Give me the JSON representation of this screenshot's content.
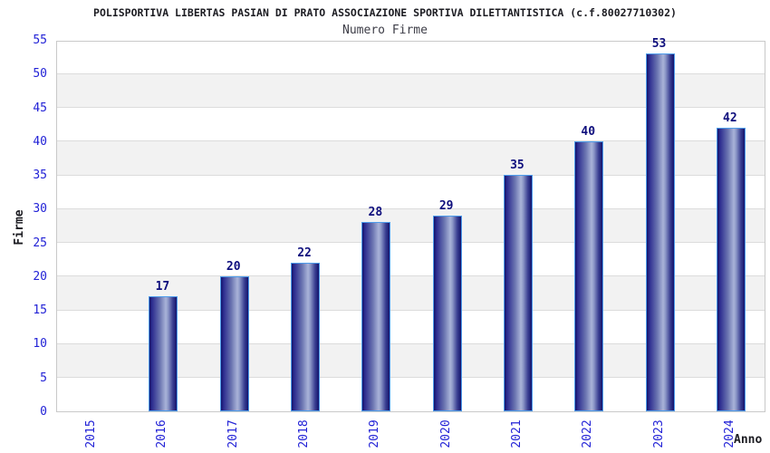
{
  "chart_data": {
    "type": "bar",
    "title": "POLISPORTIVA LIBERTAS PASIAN DI PRATO ASSOCIAZIONE SPORTIVA DILETTANTISTICA (c.f.80027710302)",
    "subtitle": "Numero Firme",
    "xlabel": "Anno",
    "ylabel": "Firme",
    "categories": [
      "2015",
      "2016",
      "2017",
      "2018",
      "2019",
      "2020",
      "2021",
      "2022",
      "2023",
      "2024"
    ],
    "values": [
      null,
      17,
      20,
      22,
      28,
      29,
      35,
      40,
      53,
      42
    ],
    "ylim": [
      0,
      55
    ],
    "ytick_step": 5,
    "yticks": [
      0,
      5,
      10,
      15,
      20,
      25,
      30,
      35,
      40,
      45,
      50,
      55
    ],
    "grid": "horizontal",
    "banding": "alternating light-gray bands every 5 units",
    "legend": "none",
    "colors": {
      "bar_edge": "#4d9ceb",
      "bar_dark": "#13136b",
      "bar_mid": "#2e2e91",
      "bar_highlight": "#a9b3d8",
      "tick_label": "#2222d6",
      "value_label": "#0f0f7d",
      "title_text": "#1c1c22",
      "subtitle_text": "#3d3d47",
      "band_fill": "#f2f2f2",
      "gridline": "#dcdcdc",
      "plot_border": "#c9c9c9",
      "background": "#ffffff"
    }
  }
}
